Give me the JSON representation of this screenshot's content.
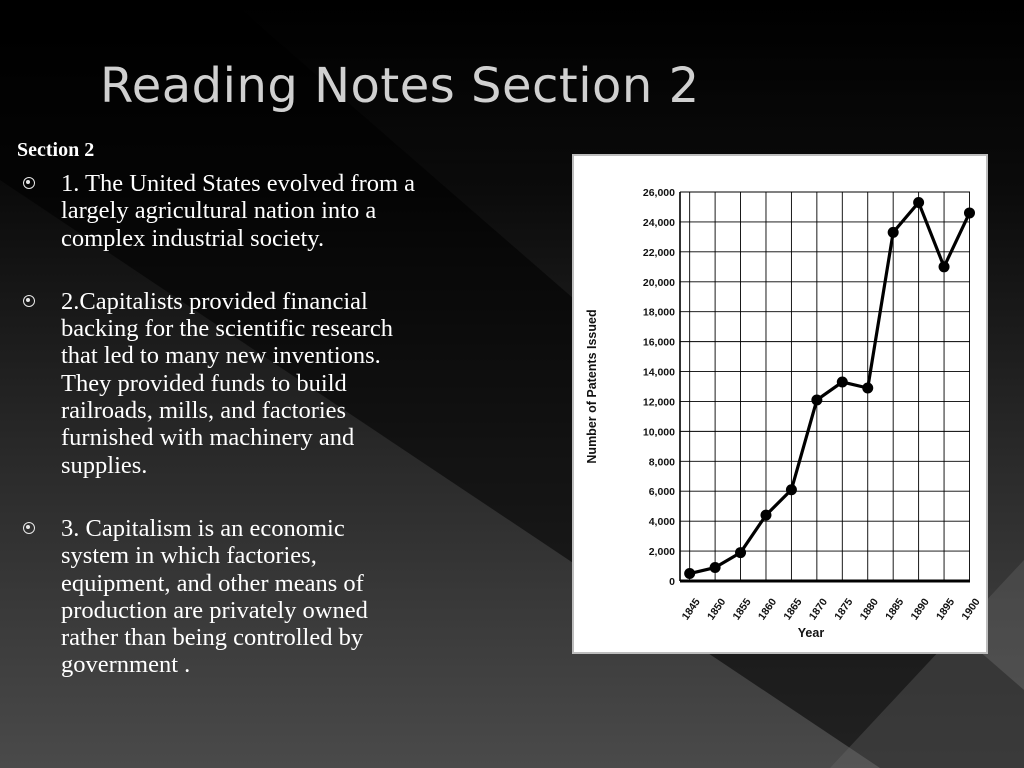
{
  "slide": {
    "title": "Reading Notes Section 2",
    "section_label": "Section 2",
    "bullets": [
      {
        "lines": [
          "1. The United States evolved from a",
          "largely agricultural nation into a",
          "complex industrial  society."
        ]
      },
      {
        "lines": [
          "2.Capitalists provided financial",
          "backing for the scientific research",
          "that led to many new inventions.",
          "They provided funds to build",
          "railroads, mills, and factories",
          "furnished with machinery and",
          "supplies."
        ]
      },
      {
        "lines": [
          "3. Capitalism is an economic",
          "system in which factories,",
          "equipment, and other means of",
          "production are privately owned",
          "rather than being controlled  by",
          "government ."
        ]
      }
    ],
    "bullet_icon": "circle-dot-icon"
  },
  "chart_data": {
    "type": "line",
    "title": "",
    "xlabel": "Year",
    "ylabel": "Number of Patents Issued",
    "x": [
      "1845",
      "1850",
      "1855",
      "1860",
      "1865",
      "1870",
      "1875",
      "1880",
      "1885",
      "1890",
      "1895",
      "1900"
    ],
    "series": [
      {
        "values": [
          500,
          900,
          1900,
          4400,
          6100,
          12100,
          13300,
          12900,
          23300,
          25300,
          21000,
          24600
        ]
      }
    ],
    "ylim": [
      0,
      26000
    ],
    "yticks": [
      "0",
      "2,000",
      "4,000",
      "6,000",
      "8,000",
      "10,000",
      "12,000",
      "14,000",
      "16,000",
      "18,000",
      "20,000",
      "22,000",
      "24,000",
      "26,000"
    ],
    "grid": true,
    "legend": "none",
    "colors": {
      "line": "#000000",
      "grid": "#000000",
      "background": "#ffffff"
    }
  }
}
